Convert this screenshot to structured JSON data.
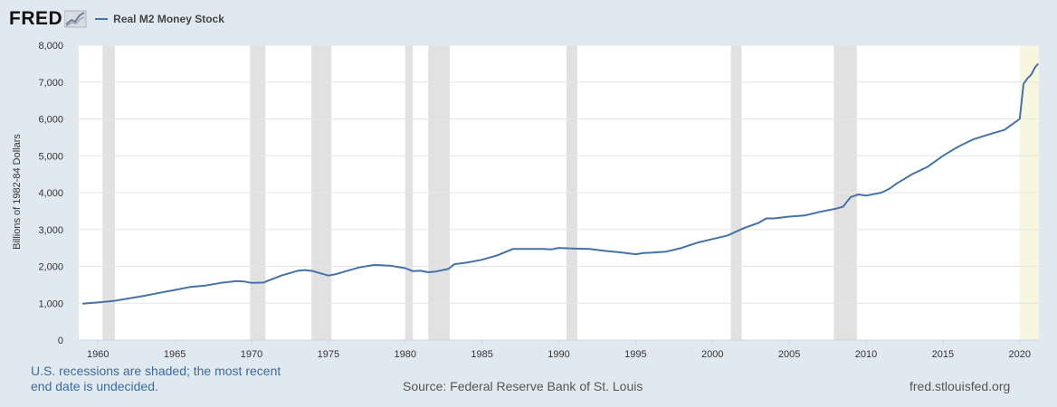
{
  "header": {
    "logo_text": "FRED",
    "series_label": "Real M2 Money Stock",
    "series_color": "#4572a7"
  },
  "footer": {
    "note": "U.S. recessions are shaded; the most recent end date is undecided.",
    "source": "Source: Federal Reserve Bank of St. Louis",
    "site": "fred.stlouisfed.org"
  },
  "colors": {
    "background": "#e1e9f0",
    "plot_background": "#ffffff",
    "recession_shade": "#e1e1e1",
    "undecided_shade": "#f7f7e0"
  },
  "chart_data": {
    "type": "line",
    "title": "",
    "xlabel": "",
    "ylabel": "Billions of 1982-84 Dollars",
    "xlim": [
      1958.75,
      2021.25
    ],
    "ylim": [
      0,
      8000
    ],
    "grid": true,
    "legend": "top-left",
    "x_ticks": [
      1960,
      1965,
      1970,
      1975,
      1980,
      1985,
      1990,
      1995,
      2000,
      2005,
      2010,
      2015,
      2020
    ],
    "y_ticks": [
      0,
      1000,
      2000,
      3000,
      4000,
      5000,
      6000,
      7000,
      8000
    ],
    "y_tick_labels": [
      "0",
      "1,000",
      "2,000",
      "3,000",
      "4,000",
      "5,000",
      "6,000",
      "7,000",
      "8,000"
    ],
    "recessions": [
      [
        1960.3,
        1961.1
      ],
      [
        1969.9,
        1970.9
      ],
      [
        1973.9,
        1975.2
      ],
      [
        1980.0,
        1980.5
      ],
      [
        1981.5,
        1982.9
      ],
      [
        1990.5,
        1991.2
      ],
      [
        2001.2,
        2001.9
      ],
      [
        2007.9,
        2009.4
      ]
    ],
    "recession_undecided": [
      2020.0,
      2021.25
    ],
    "series": [
      {
        "name": "Real M2 Money Stock",
        "points": [
          [
            1959.0,
            990
          ],
          [
            1960.0,
            1020
          ],
          [
            1961.0,
            1060
          ],
          [
            1962.0,
            1130
          ],
          [
            1963.0,
            1200
          ],
          [
            1964.0,
            1280
          ],
          [
            1965.0,
            1360
          ],
          [
            1966.0,
            1440
          ],
          [
            1967.0,
            1480
          ],
          [
            1968.0,
            1550
          ],
          [
            1969.0,
            1600
          ],
          [
            1969.5,
            1590
          ],
          [
            1970.0,
            1550
          ],
          [
            1970.8,
            1560
          ],
          [
            1971.0,
            1600
          ],
          [
            1972.0,
            1760
          ],
          [
            1973.0,
            1880
          ],
          [
            1973.5,
            1900
          ],
          [
            1974.0,
            1870
          ],
          [
            1975.0,
            1750
          ],
          [
            1975.5,
            1790
          ],
          [
            1976.0,
            1850
          ],
          [
            1977.0,
            1970
          ],
          [
            1978.0,
            2040
          ],
          [
            1979.0,
            2020
          ],
          [
            1980.0,
            1950
          ],
          [
            1980.5,
            1870
          ],
          [
            1981.0,
            1880
          ],
          [
            1981.5,
            1840
          ],
          [
            1982.0,
            1860
          ],
          [
            1982.8,
            1930
          ],
          [
            1983.2,
            2060
          ],
          [
            1984.0,
            2100
          ],
          [
            1985.0,
            2180
          ],
          [
            1986.0,
            2300
          ],
          [
            1987.0,
            2470
          ],
          [
            1988.0,
            2470
          ],
          [
            1989.0,
            2470
          ],
          [
            1989.5,
            2460
          ],
          [
            1990.0,
            2500
          ],
          [
            1991.0,
            2480
          ],
          [
            1992.0,
            2470
          ],
          [
            1993.0,
            2420
          ],
          [
            1994.0,
            2380
          ],
          [
            1995.0,
            2330
          ],
          [
            1995.5,
            2360
          ],
          [
            1996.0,
            2370
          ],
          [
            1997.0,
            2400
          ],
          [
            1998.0,
            2500
          ],
          [
            1999.0,
            2640
          ],
          [
            2000.0,
            2740
          ],
          [
            2001.0,
            2840
          ],
          [
            2002.0,
            3030
          ],
          [
            2003.0,
            3180
          ],
          [
            2003.5,
            3300
          ],
          [
            2004.0,
            3300
          ],
          [
            2005.0,
            3350
          ],
          [
            2006.0,
            3380
          ],
          [
            2007.0,
            3480
          ],
          [
            2008.0,
            3560
          ],
          [
            2008.5,
            3620
          ],
          [
            2009.0,
            3880
          ],
          [
            2009.5,
            3950
          ],
          [
            2010.0,
            3920
          ],
          [
            2011.0,
            4000
          ],
          [
            2011.5,
            4100
          ],
          [
            2012.0,
            4250
          ],
          [
            2013.0,
            4500
          ],
          [
            2014.0,
            4700
          ],
          [
            2015.0,
            5000
          ],
          [
            2016.0,
            5250
          ],
          [
            2017.0,
            5450
          ],
          [
            2018.0,
            5580
          ],
          [
            2019.0,
            5700
          ],
          [
            2019.5,
            5850
          ],
          [
            2020.0,
            6000
          ],
          [
            2020.25,
            6950
          ],
          [
            2020.5,
            7100
          ],
          [
            2020.75,
            7200
          ],
          [
            2021.0,
            7400
          ],
          [
            2021.2,
            7500
          ]
        ]
      }
    ]
  }
}
